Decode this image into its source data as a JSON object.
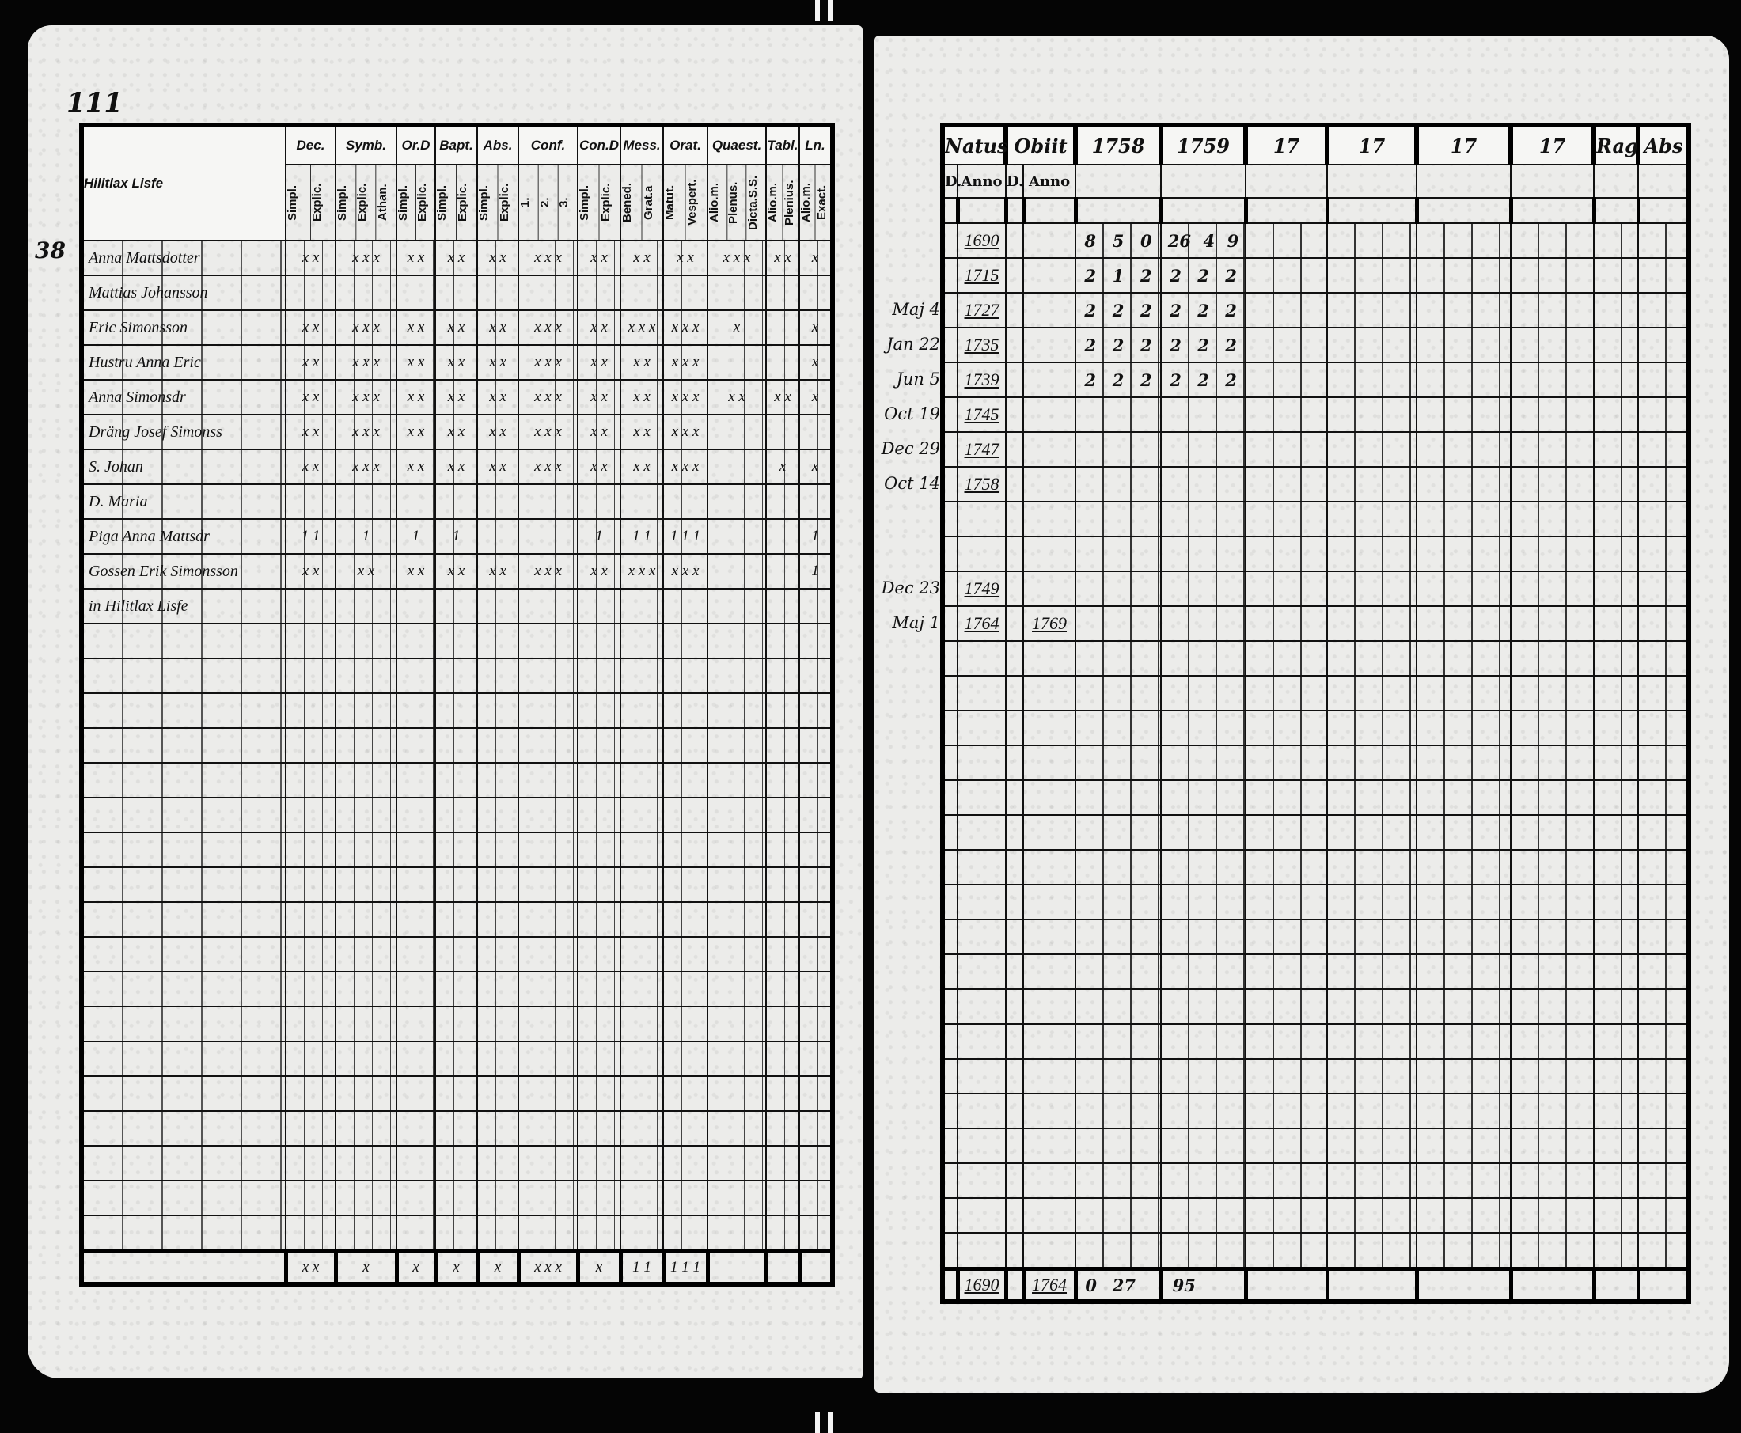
{
  "left_page": {
    "page_number": "111",
    "margin_number": "38",
    "name_header": "Hilitlax Lisfe",
    "columns": [
      {
        "label": "Dec.",
        "sub": [
          "Simpl.",
          "Explic."
        ]
      },
      {
        "label": "Symb.",
        "sub": [
          "Simpl.",
          "Explic.",
          "Athan."
        ]
      },
      {
        "label": "Or.D",
        "sub": [
          "Simpl.",
          "Explic."
        ]
      },
      {
        "label": "Bapt.",
        "sub": [
          "Simpl.",
          "Explic."
        ]
      },
      {
        "label": "Abs.",
        "sub": [
          "Simpl.",
          "Explic."
        ]
      },
      {
        "label": "Conf.",
        "sub": [
          "1.",
          "2.",
          "3."
        ]
      },
      {
        "label": "Con.D",
        "sub": [
          "Simpl.",
          "Explic."
        ]
      },
      {
        "label": "Mess.",
        "sub": [
          "Bened.",
          "Grat.a"
        ]
      },
      {
        "label": "Orat.",
        "sub": [
          "Matut.",
          "Vespert."
        ]
      },
      {
        "label": "Quaest.",
        "sub": [
          "Alio.m.",
          "Plenus.",
          "Dicta.S.S."
        ]
      },
      {
        "label": "Tabl.",
        "sub": [
          "Alio.m.",
          "Plenius."
        ]
      },
      {
        "label": "Ln.",
        "sub": [
          "Alio.m.",
          "Exact."
        ]
      }
    ],
    "rows": [
      {
        "name": "Anna Mattsdotter",
        "marks": [
          "x x",
          "x x x",
          "x x",
          "x x",
          "x x",
          "x x x",
          "x x",
          "x x",
          "x x",
          "x x x",
          "x x",
          "x"
        ]
      },
      {
        "name": "Mattias Johansson",
        "marks": [
          "",
          "",
          "",
          "",
          "",
          "",
          "",
          "",
          "",
          "",
          "",
          ""
        ]
      },
      {
        "name": "Eric Simonsson",
        "marks": [
          "x x",
          "x x x",
          "x x",
          "x x",
          "x x",
          "x x x",
          "x x",
          "x x x",
          "x x x",
          "x",
          "",
          "x"
        ]
      },
      {
        "name": "Hustru Anna Eric",
        "marks": [
          "x x",
          "x x x",
          "x x",
          "x x",
          "x x",
          "x x x",
          "x x",
          "x x",
          "x x x",
          "",
          "",
          "x"
        ]
      },
      {
        "name": "Anna Simonsdr",
        "marks": [
          "x x",
          "x x x",
          "x x",
          "x x",
          "x x",
          "x x x",
          "x x",
          "x x",
          "x x x",
          "x x",
          "x x",
          "x"
        ]
      },
      {
        "name": "Dräng Josef Simonss",
        "marks": [
          "x x",
          "x x x",
          "x x",
          "x x",
          "x x",
          "x x x",
          "x x",
          "x x",
          "x x x",
          "",
          "",
          ""
        ]
      },
      {
        "name": "S. Johan",
        "marks": [
          "x x",
          "x x x",
          "x x",
          "x x",
          "x x",
          "x x x",
          "x x",
          "x x",
          "x x x",
          "",
          "x",
          "x"
        ]
      },
      {
        "name": "D. Maria",
        "marks": [
          "",
          "",
          "",
          "",
          "",
          "",
          "",
          "",
          "",
          "",
          "",
          ""
        ]
      },
      {
        "name": "Piga Anna Mattsdr",
        "marks": [
          "1 1",
          "1",
          "1",
          "1",
          "",
          "",
          "1",
          "1 1",
          "1 1 1",
          "",
          "",
          "1"
        ]
      },
      {
        "name": "Gossen Erik Simonsson",
        "marks": [
          "x x",
          "x x",
          "x x",
          "x x",
          "x x",
          "x x x",
          "x x",
          "x x x",
          "x x x",
          "",
          "",
          "1"
        ]
      },
      {
        "name": "in Hilitlax Lisfe",
        "marks": [
          "",
          "",
          "",
          "",
          "",
          "",
          "",
          "",
          "",
          "",
          "",
          ""
        ]
      }
    ],
    "totals_marks": [
      "x x",
      "x",
      "x",
      "x",
      "x",
      "x x x",
      "x",
      "1 1",
      "1 1 1",
      "",
      "",
      ""
    ]
  },
  "right_page": {
    "columns": [
      {
        "label": "Natus",
        "sub": [
          "D.",
          "Anno"
        ]
      },
      {
        "label": "Obiit",
        "sub": [
          "D.",
          "Anno"
        ]
      },
      {
        "label": "1758"
      },
      {
        "label": "1759"
      },
      {
        "label": "17"
      },
      {
        "label": "17"
      },
      {
        "label": "17"
      },
      {
        "label": "17"
      },
      {
        "label": "Rag"
      },
      {
        "label": "Abs"
      }
    ],
    "rows": [
      {
        "natus_d": "",
        "natus_anno": "1690",
        "obiit_d": "",
        "obiit_anno": "",
        "y1758": [
          "8",
          "5",
          "0"
        ],
        "y1759": [
          "26",
          "4",
          "9"
        ]
      },
      {
        "natus_d": "",
        "natus_anno": "1715",
        "obiit_d": "",
        "obiit_anno": "",
        "y1758": [
          "2",
          "1",
          "2"
        ],
        "y1759": [
          "2",
          "2",
          "2"
        ]
      },
      {
        "natus_d": "Maj 4",
        "natus_anno": "1727",
        "obiit_d": "",
        "obiit_anno": "",
        "y1758": [
          "2",
          "2",
          "2"
        ],
        "y1759": [
          "2",
          "2",
          "2"
        ]
      },
      {
        "natus_d": "Jan 22",
        "natus_anno": "1735",
        "obiit_d": "",
        "obiit_anno": "",
        "y1758": [
          "2",
          "2",
          "2"
        ],
        "y1759": [
          "2",
          "2",
          "2"
        ]
      },
      {
        "natus_d": "Jun 5",
        "natus_anno": "1739",
        "obiit_d": "",
        "obiit_anno": "",
        "y1758": [
          "2",
          "2",
          "2"
        ],
        "y1759": [
          "2",
          "2",
          "2"
        ]
      },
      {
        "natus_d": "Oct 19",
        "natus_anno": "1745",
        "obiit_d": "",
        "obiit_anno": "",
        "y1758": [
          "",
          "",
          ""
        ],
        "y1759": [
          "",
          "",
          ""
        ]
      },
      {
        "natus_d": "Dec 29",
        "natus_anno": "1747",
        "obiit_d": "",
        "obiit_anno": "",
        "y1758": [
          "",
          "",
          ""
        ],
        "y1759": [
          "",
          "",
          ""
        ]
      },
      {
        "natus_d": "Oct 14",
        "natus_anno": "1758",
        "obiit_d": "",
        "obiit_anno": "",
        "y1758": [
          "",
          "",
          ""
        ],
        "y1759": [
          "",
          "",
          ""
        ]
      },
      {
        "natus_d": "",
        "natus_anno": "",
        "obiit_d": "",
        "obiit_anno": "",
        "y1758": [
          "",
          "",
          ""
        ],
        "y1759": [
          "",
          "",
          ""
        ]
      },
      {
        "natus_d": "",
        "natus_anno": "",
        "obiit_d": "",
        "obiit_anno": "",
        "y1758": [
          "",
          "",
          ""
        ],
        "y1759": [
          "",
          "",
          ""
        ]
      },
      {
        "natus_d": "Dec 23",
        "natus_anno": "1749",
        "obiit_d": "",
        "obiit_anno": "",
        "y1758": [
          "",
          "",
          ""
        ],
        "y1759": [
          "",
          "",
          ""
        ]
      },
      {
        "natus_d": "Maj 1",
        "natus_anno": "1764",
        "obiit_d": "",
        "obiit_anno": "1769",
        "y1758": [
          "",
          "",
          ""
        ],
        "y1759": [
          "",
          "",
          ""
        ]
      }
    ],
    "totals": {
      "natus_anno": "1690",
      "obiit_anno": "1764",
      "y1758": [
        "0",
        "27",
        ""
      ],
      "y1759": [
        "95",
        "",
        ""
      ]
    }
  }
}
